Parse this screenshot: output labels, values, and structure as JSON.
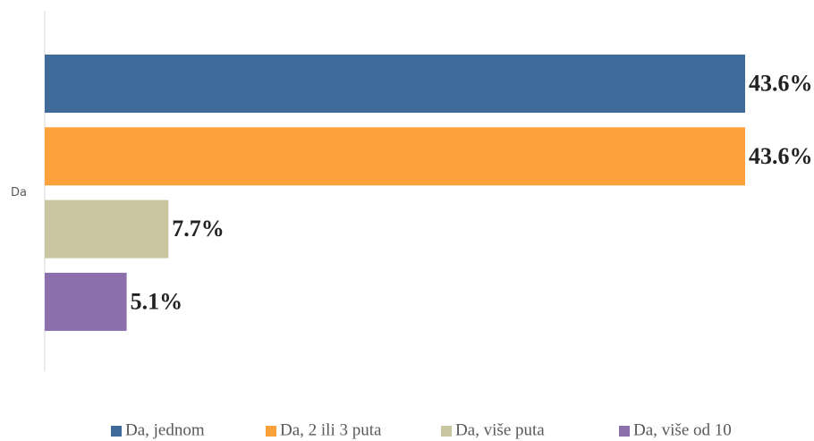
{
  "chart_data": {
    "type": "bar",
    "orientation": "horizontal",
    "categories": [
      "Da"
    ],
    "series": [
      {
        "name": "Da, jednom",
        "color": "#3f6b9b",
        "values": [
          43.6
        ],
        "value_labels": [
          "43.6%"
        ]
      },
      {
        "name": "Da, 2 ili 3 puta",
        "color": "#fda13a",
        "values": [
          43.6
        ],
        "value_labels": [
          "43.6%"
        ]
      },
      {
        "name": "Da, više puta",
        "color": "#c9c5a0",
        "values": [
          7.7
        ],
        "value_labels": [
          "7.7%"
        ]
      },
      {
        "name": "Da, više od 10",
        "color": "#8c6fad",
        "values": [
          5.1
        ],
        "value_labels": [
          "5.1%"
        ]
      }
    ],
    "legend": "bottom"
  }
}
